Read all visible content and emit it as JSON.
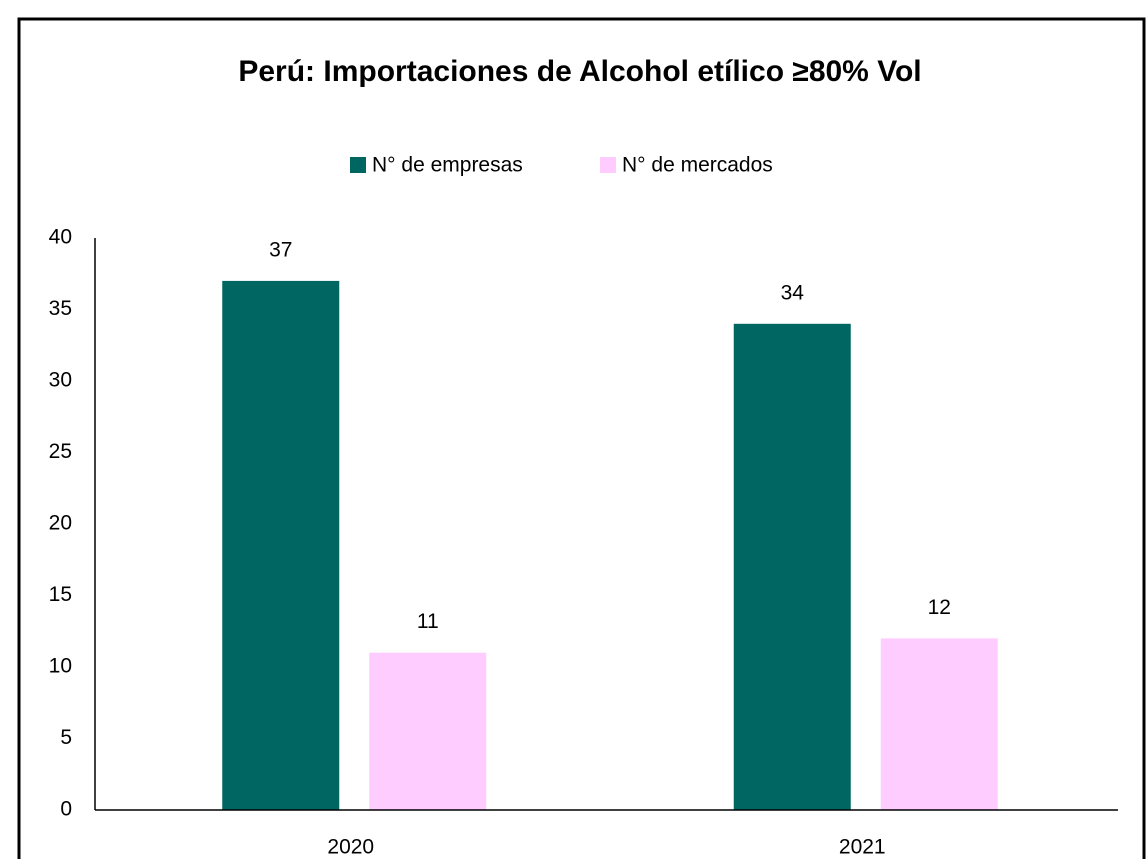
{
  "chart_data": {
    "type": "bar",
    "title": "Perú: Importaciones de Alcohol etílico ≥80% Vol",
    "categories": [
      "2020",
      "2021"
    ],
    "series": [
      {
        "name": "N° de empresas",
        "color": "#006661",
        "values": [
          37,
          34
        ]
      },
      {
        "name": "N° de mercados",
        "color": "#ffccff",
        "values": [
          11,
          12
        ]
      }
    ],
    "ylim": [
      0,
      40
    ],
    "yticks": [
      0,
      5,
      10,
      15,
      20,
      25,
      30,
      35,
      40
    ],
    "grid": false,
    "legend": "top"
  }
}
